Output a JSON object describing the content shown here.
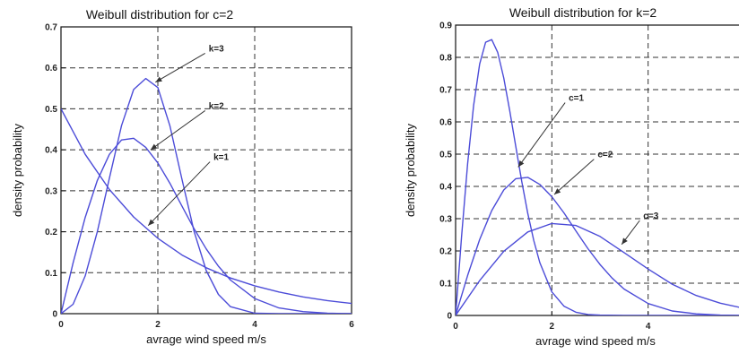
{
  "chart_data": [
    {
      "type": "line",
      "title": "Weibull distribution for c=2",
      "xlabel": "avrage wind speed m/s",
      "ylabel": "density probability",
      "xlim": [
        0,
        6
      ],
      "ylim": [
        0,
        0.7
      ],
      "xticks": [
        0,
        2,
        4,
        6
      ],
      "yticks": [
        0,
        0.1,
        0.2,
        0.3,
        0.4,
        0.5,
        0.6,
        0.7
      ],
      "xtick_labels": [
        "0",
        "2",
        "4",
        "6"
      ],
      "ytick_labels": [
        "0",
        "0.1",
        "0.2",
        "0.3",
        "0.4",
        "0.5",
        "0.6",
        "0.7"
      ],
      "grid": true,
      "grid_style": "dashed",
      "line_color": "#4c4cd8",
      "series": [
        {
          "name": "k=1",
          "x": [
            0,
            0.5,
            1,
            1.5,
            2,
            2.5,
            3,
            3.5,
            4,
            4.5,
            5,
            5.5,
            6
          ],
          "y": [
            0.5,
            0.389,
            0.303,
            0.236,
            0.184,
            0.143,
            0.112,
            0.087,
            0.068,
            0.053,
            0.041,
            0.032,
            0.025
          ]
        },
        {
          "name": "k=2",
          "x": [
            0,
            0.25,
            0.5,
            0.75,
            1,
            1.25,
            1.5,
            1.75,
            2,
            2.25,
            2.5,
            2.75,
            3,
            3.25,
            3.5,
            4,
            4.5,
            5,
            5.5,
            6
          ],
          "y": [
            0,
            0.124,
            0.235,
            0.325,
            0.389,
            0.424,
            0.428,
            0.406,
            0.368,
            0.318,
            0.262,
            0.207,
            0.158,
            0.116,
            0.082,
            0.037,
            0.014,
            0.005,
            0.001,
            0
          ]
        },
        {
          "name": "k=3",
          "x": [
            0,
            0.25,
            0.5,
            0.75,
            1,
            1.25,
            1.5,
            1.75,
            2,
            2.25,
            2.5,
            2.75,
            3,
            3.25,
            3.5,
            4,
            4.5,
            5,
            5.5,
            6
          ],
          "y": [
            0,
            0.023,
            0.092,
            0.2,
            0.331,
            0.459,
            0.547,
            0.574,
            0.552,
            0.458,
            0.327,
            0.2,
            0.105,
            0.047,
            0.017,
            0.001,
            0,
            0,
            0,
            0
          ]
        }
      ],
      "annotations": [
        {
          "text": "k=3",
          "series": "k=3",
          "point": [
            1.95,
            0.565
          ],
          "label_at": [
            3.05,
            0.64
          ]
        },
        {
          "text": "k=2",
          "series": "k=2",
          "point": [
            1.85,
            0.4
          ],
          "label_at": [
            3.05,
            0.5
          ]
        },
        {
          "text": "k=1",
          "series": "k=1",
          "point": [
            1.8,
            0.215
          ],
          "label_at": [
            3.15,
            0.375
          ]
        }
      ]
    },
    {
      "type": "line",
      "title": "Weibull distribution for k=2",
      "xlabel": "avrage wind speed m/s",
      "ylabel": "density probability",
      "xlim": [
        0,
        6
      ],
      "ylim": [
        0,
        0.9
      ],
      "xticks": [
        0,
        2,
        4
      ],
      "yticks": [
        0,
        0.1,
        0.2,
        0.3,
        0.4,
        0.5,
        0.6,
        0.7,
        0.8,
        0.9
      ],
      "xtick_labels": [
        "0",
        "2",
        "4"
      ],
      "ytick_labels": [
        "0",
        "0.1",
        "0.2",
        "0.3",
        "0.4",
        "0.5",
        "0.6",
        "0.7",
        "0.8",
        "0.9"
      ],
      "grid": true,
      "grid_style": "dashed",
      "line_color": "#4c4cd8",
      "series": [
        {
          "name": "c=1",
          "x": [
            0,
            0.125,
            0.25,
            0.375,
            0.5,
            0.625,
            0.75,
            0.875,
            1,
            1.125,
            1.25,
            1.375,
            1.5,
            1.625,
            1.75,
            2,
            2.25,
            2.5,
            2.75,
            3,
            3.5,
            4,
            5,
            6
          ],
          "y": [
            0,
            0.246,
            0.47,
            0.651,
            0.779,
            0.847,
            0.855,
            0.815,
            0.736,
            0.634,
            0.524,
            0.415,
            0.316,
            0.232,
            0.164,
            0.073,
            0.029,
            0.01,
            0.003,
            0.001,
            0,
            0,
            0,
            0
          ]
        },
        {
          "name": "c=2",
          "x": [
            0,
            0.25,
            0.5,
            0.75,
            1,
            1.25,
            1.5,
            1.75,
            2,
            2.25,
            2.5,
            2.75,
            3,
            3.25,
            3.5,
            4,
            4.5,
            5,
            5.5,
            6
          ],
          "y": [
            0,
            0.124,
            0.235,
            0.325,
            0.389,
            0.424,
            0.428,
            0.406,
            0.368,
            0.318,
            0.262,
            0.207,
            0.158,
            0.116,
            0.082,
            0.037,
            0.014,
            0.005,
            0.001,
            0
          ]
        },
        {
          "name": "c=3",
          "x": [
            0,
            0.5,
            1,
            1.5,
            2,
            2.5,
            3,
            3.5,
            4,
            4.5,
            5,
            5.5,
            6
          ],
          "y": [
            0,
            0.108,
            0.199,
            0.259,
            0.285,
            0.279,
            0.245,
            0.195,
            0.144,
            0.097,
            0.062,
            0.038,
            0.022
          ]
        }
      ],
      "annotations": [
        {
          "text": "c=1",
          "series": "c=1",
          "point": [
            1.3,
            0.46
          ],
          "label_at": [
            2.35,
            0.665
          ]
        },
        {
          "text": "c=2",
          "series": "c=2",
          "point": [
            2.05,
            0.375
          ],
          "label_at": [
            2.95,
            0.49
          ]
        },
        {
          "text": "c=3",
          "series": "c=3",
          "point": [
            3.45,
            0.22
          ],
          "label_at": [
            3.9,
            0.3
          ]
        }
      ]
    }
  ]
}
